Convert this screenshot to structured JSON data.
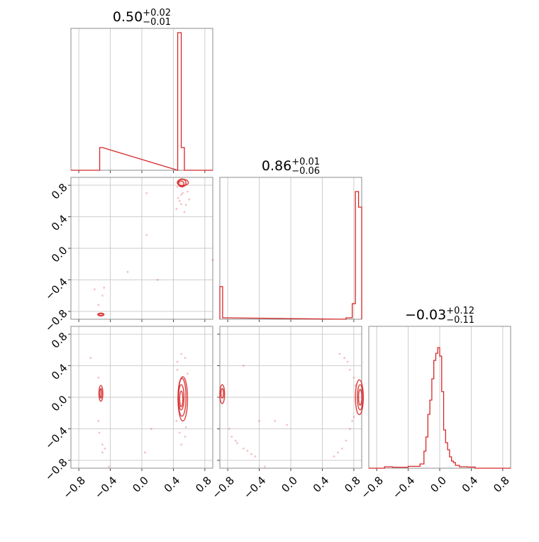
{
  "chart_data": {
    "type": "corner",
    "color": "#d62728",
    "panel_ticks": [
      -0.8,
      -0.4,
      0.0,
      0.4,
      0.8
    ],
    "tick_labels": [
      "−0.8",
      "−0.4",
      "0.0",
      "0.4",
      "0.8"
    ],
    "axis_range": [
      -0.9,
      0.9
    ],
    "grid": true,
    "titles": [
      {
        "value": "0.50",
        "plus": "+0.02",
        "minus": "−0.01"
      },
      {
        "value": "0.86",
        "plus": "+0.01",
        "minus": "−0.06"
      },
      {
        "value": "−0.03",
        "plus": "+0.12",
        "minus": "−0.11"
      }
    ],
    "histograms": [
      {
        "param": 0,
        "bins": [
          {
            "x0": -0.535,
            "x1": -0.5,
            "h": 0.16
          },
          {
            "x0": 0.455,
            "x1": 0.5,
            "h": 0.97
          },
          {
            "x0": 0.5,
            "x1": 0.54,
            "h": 0.16
          }
        ]
      },
      {
        "param": 1,
        "bins": [
          {
            "x0": -0.9,
            "x1": -0.865,
            "h": 0.23
          },
          {
            "x0": -0.865,
            "x1": -0.8,
            "h": 0.01
          },
          {
            "x0": 0.7,
            "x1": 0.78,
            "h": 0.01
          },
          {
            "x0": 0.78,
            "x1": 0.82,
            "h": 0.11
          },
          {
            "x0": 0.82,
            "x1": 0.86,
            "h": 0.9
          },
          {
            "x0": 0.86,
            "x1": 0.9,
            "h": 0.79
          }
        ]
      },
      {
        "param": 2,
        "bins": [
          {
            "x0": -0.7,
            "x1": -0.6,
            "h": 0.01
          },
          {
            "x0": -0.6,
            "x1": -0.4,
            "h": 0.007
          },
          {
            "x0": -0.4,
            "x1": -0.25,
            "h": 0.013
          },
          {
            "x0": -0.25,
            "x1": -0.2,
            "h": 0.03
          },
          {
            "x0": -0.2,
            "x1": -0.175,
            "h": 0.12
          },
          {
            "x0": -0.175,
            "x1": -0.15,
            "h": 0.22
          },
          {
            "x0": -0.15,
            "x1": -0.125,
            "h": 0.38
          },
          {
            "x0": -0.125,
            "x1": -0.1,
            "h": 0.48
          },
          {
            "x0": -0.1,
            "x1": -0.075,
            "h": 0.63
          },
          {
            "x0": -0.075,
            "x1": -0.05,
            "h": 0.76
          },
          {
            "x0": -0.05,
            "x1": -0.025,
            "h": 0.81
          },
          {
            "x0": -0.025,
            "x1": 0.0,
            "h": 0.85
          },
          {
            "x0": 0.0,
            "x1": 0.025,
            "h": 0.79
          },
          {
            "x0": 0.025,
            "x1": 0.05,
            "h": 0.54
          },
          {
            "x0": 0.05,
            "x1": 0.075,
            "h": 0.27
          },
          {
            "x0": 0.075,
            "x1": 0.1,
            "h": 0.18
          },
          {
            "x0": 0.1,
            "x1": 0.125,
            "h": 0.13
          },
          {
            "x0": 0.125,
            "x1": 0.15,
            "h": 0.08
          },
          {
            "x0": 0.15,
            "x1": 0.175,
            "h": 0.05
          },
          {
            "x0": 0.175,
            "x1": 0.2,
            "h": 0.04
          },
          {
            "x0": 0.2,
            "x1": 0.25,
            "h": 0.02
          },
          {
            "x0": 0.25,
            "x1": 0.35,
            "h": 0.01
          },
          {
            "x0": 0.35,
            "x1": 0.45,
            "h": 0.008
          }
        ]
      }
    ],
    "scatter_panels": [
      {
        "row": 1,
        "col": 0,
        "points": [
          [
            0.06,
            0.7
          ],
          [
            0.06,
            0.17
          ],
          [
            -0.18,
            -0.3
          ],
          [
            -0.6,
            -0.52
          ],
          [
            -0.5,
            -0.6
          ],
          [
            -0.48,
            -0.5
          ],
          [
            -0.55,
            -0.72
          ],
          [
            0.44,
            0.5
          ],
          [
            0.48,
            0.6
          ],
          [
            0.56,
            0.55
          ],
          [
            0.52,
            0.7
          ],
          [
            0.5,
            0.68
          ],
          [
            0.46,
            0.64
          ],
          [
            0.6,
            0.62
          ],
          [
            0.54,
            0.46
          ],
          [
            0.45,
            0.78
          ],
          [
            0.58,
            0.72
          ],
          [
            0.5,
            0.56
          ],
          [
            0.9,
            -0.15
          ],
          [
            0.2,
            -0.4
          ]
        ],
        "contours": [
          {
            "cx": 0.5,
            "cy": 0.82,
            "rx": 0.035,
            "ry": 0.035
          },
          {
            "cx": 0.51,
            "cy": 0.83,
            "rx": 0.05,
            "ry": 0.05
          },
          {
            "cx": 0.52,
            "cy": 0.835,
            "rx": 0.07,
            "ry": 0.04
          },
          {
            "cx": -0.52,
            "cy": -0.84,
            "rx": 0.025,
            "ry": 0.012
          },
          {
            "cx": -0.52,
            "cy": -0.84,
            "rx": 0.04,
            "ry": 0.018
          }
        ]
      },
      {
        "row": 2,
        "col": 0,
        "points": [
          [
            -0.65,
            0.5
          ],
          [
            -0.55,
            0.25
          ],
          [
            -0.55,
            -0.3
          ],
          [
            -0.5,
            -0.6
          ],
          [
            -0.5,
            -0.7
          ],
          [
            -0.47,
            -0.65
          ],
          [
            -0.54,
            -0.45
          ],
          [
            -0.42,
            -0.88
          ],
          [
            0.45,
            0.45
          ],
          [
            0.5,
            0.55
          ],
          [
            0.55,
            0.5
          ],
          [
            0.48,
            -0.45
          ],
          [
            0.55,
            -0.5
          ],
          [
            0.5,
            -0.6
          ],
          [
            0.45,
            0.35
          ],
          [
            0.58,
            0.3
          ],
          [
            0.12,
            -0.4
          ],
          [
            0.04,
            -0.7
          ],
          [
            0.56,
            -0.38
          ],
          [
            0.44,
            -0.3
          ]
        ],
        "contours": [
          {
            "cx": -0.52,
            "cy": 0.05,
            "rx": 0.012,
            "ry": 0.06
          },
          {
            "cx": -0.52,
            "cy": 0.05,
            "rx": 0.025,
            "ry": 0.1
          },
          {
            "cx": 0.5,
            "cy": -0.02,
            "rx": 0.02,
            "ry": 0.1
          },
          {
            "cx": 0.5,
            "cy": 0.0,
            "rx": 0.035,
            "ry": 0.16
          },
          {
            "cx": 0.51,
            "cy": 0.0,
            "rx": 0.05,
            "ry": 0.24
          },
          {
            "cx": 0.52,
            "cy": -0.02,
            "rx": 0.06,
            "ry": 0.28
          }
        ]
      },
      {
        "row": 2,
        "col": 1,
        "points": [
          [
            -0.6,
            0.4
          ],
          [
            -0.4,
            -0.3
          ],
          [
            -0.78,
            -0.4
          ],
          [
            -0.7,
            -0.55
          ],
          [
            -0.6,
            -0.65
          ],
          [
            -0.5,
            -0.72
          ],
          [
            -0.45,
            -0.75
          ],
          [
            -0.55,
            -0.68
          ],
          [
            -0.75,
            -0.5
          ],
          [
            -0.68,
            -0.58
          ],
          [
            0.6,
            -0.7
          ],
          [
            0.65,
            -0.65
          ],
          [
            0.7,
            -0.55
          ],
          [
            0.75,
            -0.4
          ],
          [
            0.78,
            -0.3
          ],
          [
            0.8,
            -0.25
          ],
          [
            0.72,
            0.45
          ],
          [
            0.75,
            0.35
          ],
          [
            0.68,
            0.5
          ],
          [
            0.62,
            0.55
          ],
          [
            0.8,
            0.25
          ],
          [
            0.82,
            0.15
          ],
          [
            -0.2,
            -0.3
          ],
          [
            -0.05,
            -0.35
          ],
          [
            -0.33,
            -0.88
          ],
          [
            0.55,
            -0.75
          ]
        ],
        "contours": [
          {
            "cx": -0.87,
            "cy": 0.05,
            "rx": 0.018,
            "ry": 0.06
          },
          {
            "cx": -0.87,
            "cy": 0.04,
            "rx": 0.03,
            "ry": 0.12
          },
          {
            "cx": 0.88,
            "cy": 0.0,
            "rx": 0.02,
            "ry": 0.1
          },
          {
            "cx": 0.88,
            "cy": 0.0,
            "rx": 0.035,
            "ry": 0.16
          },
          {
            "cx": 0.87,
            "cy": 0.0,
            "rx": 0.05,
            "ry": 0.22
          }
        ]
      }
    ]
  }
}
